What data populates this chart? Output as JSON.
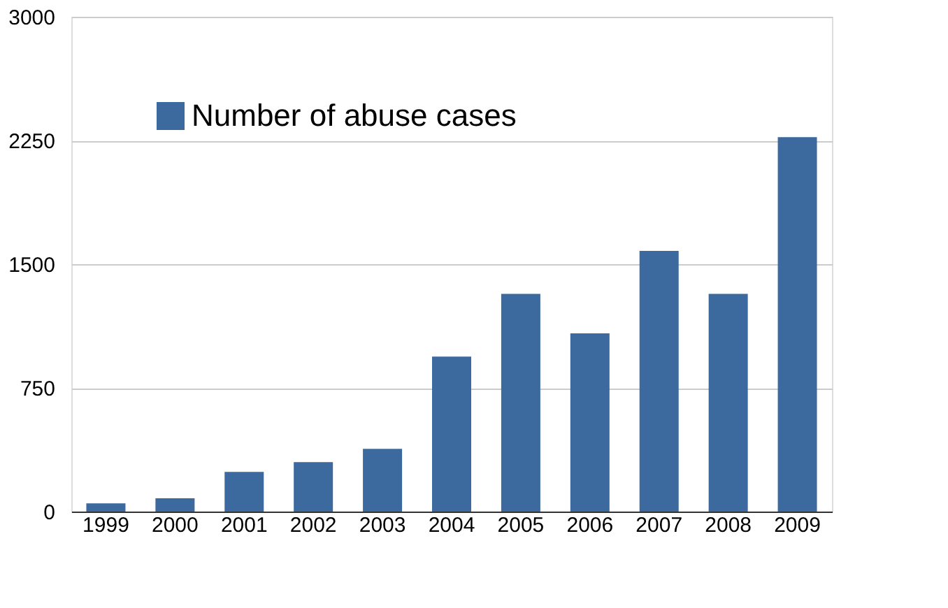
{
  "chart_data": {
    "type": "bar",
    "categories": [
      "1999",
      "2000",
      "2001",
      "2002",
      "2003",
      "2004",
      "2005",
      "2006",
      "2007",
      "2008",
      "2009"
    ],
    "series": [
      {
        "name": "Number of abuse cases",
        "color": "#3d6a9e",
        "values": [
          50,
          80,
          240,
          300,
          380,
          940,
          1320,
          1080,
          1580,
          1320,
          2270
        ]
      }
    ],
    "ylim": [
      0,
      3000
    ],
    "yticks": [
      0,
      750,
      1500,
      2250,
      3000
    ],
    "grid": "y",
    "legend": "top left"
  }
}
